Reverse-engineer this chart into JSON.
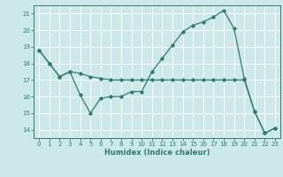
{
  "xlabel": "Humidex (Indice chaleur)",
  "x_ticks": [
    0,
    1,
    2,
    3,
    4,
    5,
    6,
    7,
    8,
    9,
    10,
    11,
    12,
    13,
    14,
    15,
    16,
    17,
    18,
    19,
    20,
    21,
    22,
    23
  ],
  "xlim": [
    -0.5,
    23.5
  ],
  "ylim": [
    13.5,
    21.5
  ],
  "y_ticks": [
    14,
    15,
    16,
    17,
    18,
    19,
    20,
    21
  ],
  "line1_x": [
    0,
    1,
    2,
    3,
    4,
    5,
    6,
    7,
    8,
    9,
    10,
    11,
    12,
    13,
    14,
    15,
    16,
    17,
    18,
    19,
    20,
    21,
    22,
    23
  ],
  "line1_y": [
    18.8,
    18.0,
    17.2,
    17.5,
    16.1,
    15.0,
    15.9,
    16.0,
    16.0,
    16.3,
    16.3,
    17.5,
    18.3,
    19.1,
    19.9,
    20.3,
    20.5,
    20.8,
    21.2,
    20.1,
    17.1,
    15.1,
    13.8,
    14.1
  ],
  "line2_x": [
    0,
    1,
    2,
    3,
    4,
    5,
    6,
    7,
    8,
    9,
    10,
    11,
    12,
    13,
    14,
    15,
    16,
    17,
    18,
    19,
    20,
    21,
    22,
    23
  ],
  "line2_y": [
    18.8,
    18.0,
    17.2,
    17.5,
    17.4,
    17.2,
    17.1,
    17.0,
    17.0,
    17.0,
    17.0,
    17.0,
    17.0,
    17.0,
    17.0,
    17.0,
    17.0,
    17.0,
    17.0,
    17.0,
    17.0,
    15.1,
    13.8,
    14.1
  ],
  "line_color": "#2d7d6f",
  "bg_color": "#cce8e8",
  "grid_color": "#ffffff",
  "marker": "D",
  "marker_size": 1.8,
  "linewidth": 0.9,
  "xlabel_fontsize": 6.0,
  "tick_fontsize": 5.0
}
